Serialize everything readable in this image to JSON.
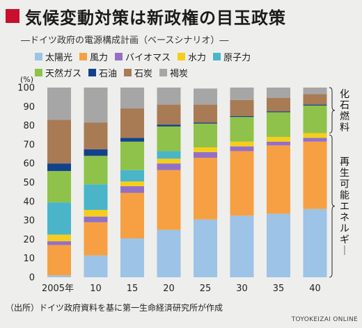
{
  "title": "気候変動対策は新政権の目玉政策",
  "subtitle": "―ドイツ政府の電源構成計画（ベースシナリオ）―",
  "source": "（出所）ドイツ政府資料を基に第一生命経済研究所が作成",
  "credit": "TOYOKEIZAI ONLINE",
  "chart_data": {
    "type": "bar",
    "stacked": true,
    "title": "",
    "xlabel": "",
    "ylabel": "(%)",
    "ylim": [
      0,
      100
    ],
    "yticks": [
      "0",
      "10",
      "20",
      "30",
      "40",
      "50",
      "60",
      "70",
      "80",
      "90",
      "100"
    ],
    "categories": [
      "2005年",
      "10",
      "15",
      "20",
      "25",
      "30",
      "35",
      "40"
    ],
    "series": [
      {
        "name": "太陽光",
        "color": "#9dc3e6",
        "values": [
          1,
          11.5,
          20.5,
          25,
          30.5,
          32.5,
          33.5,
          36
        ]
      },
      {
        "name": "風力",
        "color": "#f7a043",
        "values": [
          16,
          17.5,
          24,
          31.5,
          32.5,
          34,
          36,
          35.5
        ]
      },
      {
        "name": "バイオマス",
        "color": "#9370c6",
        "values": [
          2,
          3,
          3.5,
          3.5,
          3,
          2.5,
          2,
          2
        ]
      },
      {
        "name": "水力",
        "color": "#f5ce1b",
        "values": [
          3.5,
          3.5,
          2.5,
          2.5,
          2.5,
          2.5,
          2.5,
          2.5
        ]
      },
      {
        "name": "原子力",
        "color": "#4ab5c9",
        "values": [
          17,
          13.5,
          6,
          4,
          0,
          0,
          0,
          0
        ]
      },
      {
        "name": "天然ガス",
        "color": "#8fc24a",
        "values": [
          16.5,
          15,
          15,
          13,
          12.5,
          13,
          13,
          14.5
        ]
      },
      {
        "name": "石油",
        "color": "#14428a",
        "values": [
          4,
          3.5,
          2,
          1,
          0.5,
          0.5,
          0.5,
          0.5
        ]
      },
      {
        "name": "石炭",
        "color": "#a87b55",
        "values": [
          23,
          14,
          15.5,
          10.5,
          9.5,
          8.5,
          7,
          5.5
        ]
      },
      {
        "name": "褐炭",
        "color": "#a6a6a6",
        "values": [
          17,
          18.5,
          11,
          9,
          8.5,
          6.5,
          5.5,
          3.5
        ]
      }
    ],
    "legend_position": "top",
    "groups": [
      {
        "label": "化石燃料",
        "series": [
          "天然ガス",
          "石油",
          "石炭",
          "褐炭"
        ]
      },
      {
        "label": "再生可能エネルギー",
        "series": [
          "太陽光",
          "風力",
          "バイオマス",
          "水力"
        ]
      }
    ],
    "grid": false
  }
}
